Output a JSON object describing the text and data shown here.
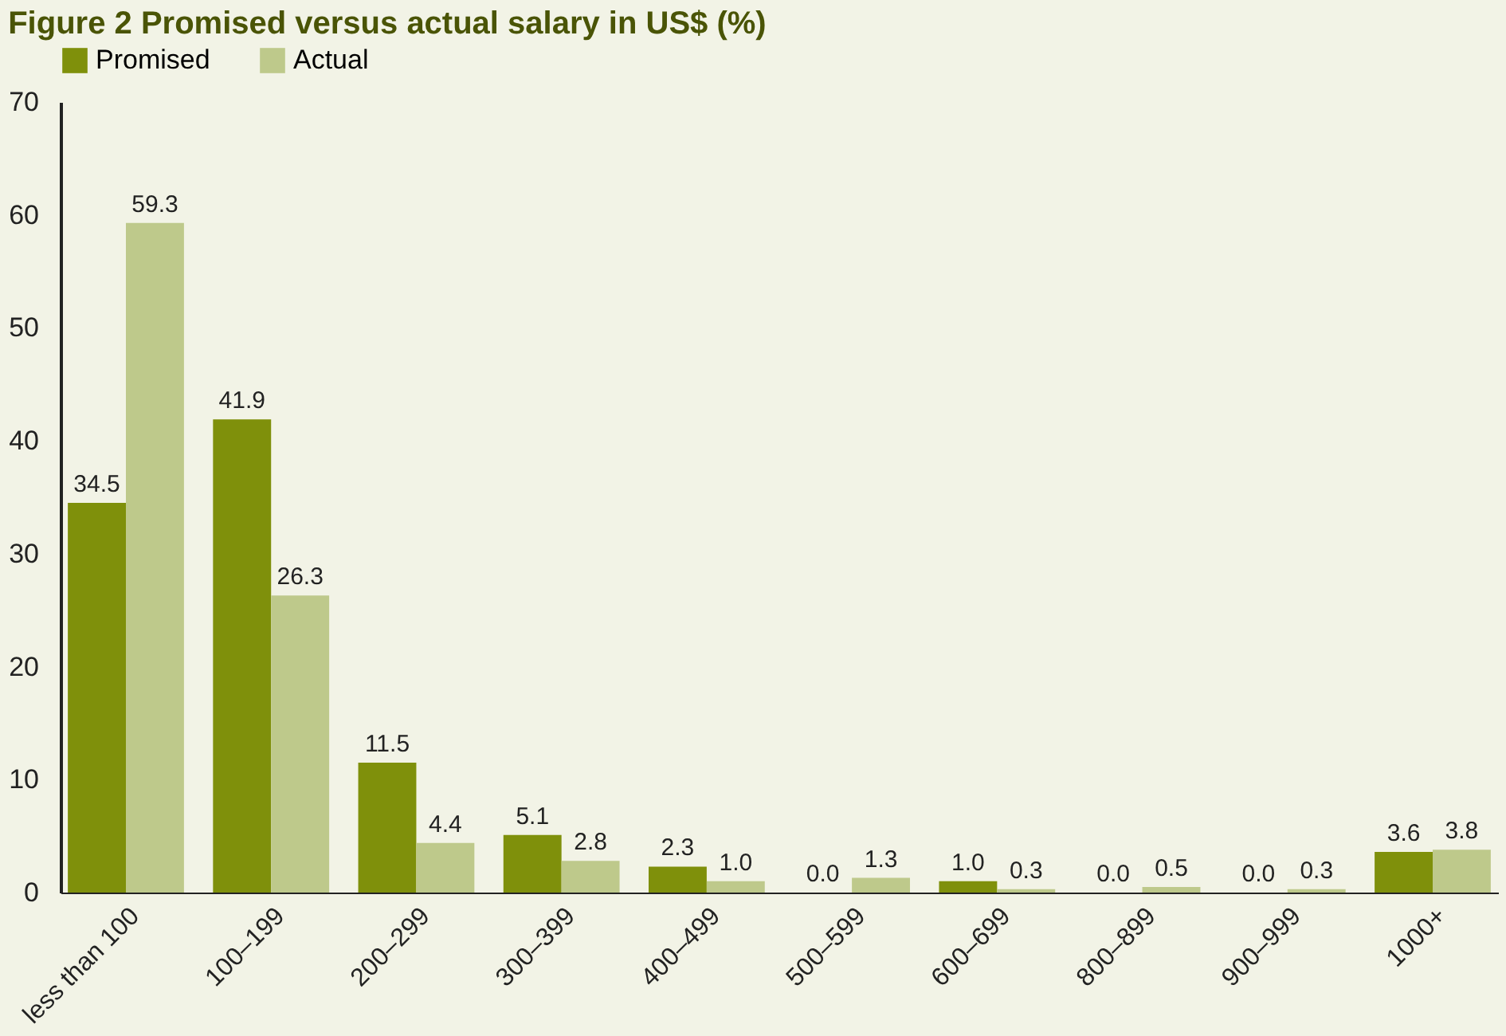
{
  "chart_data": {
    "type": "bar",
    "title": "Figure 2 Promised versus actual salary in US$ (%)",
    "categories": [
      "less than 100",
      "100–199",
      "200–299",
      "300–399",
      "400–499",
      "500–599",
      "600–699",
      "800–899",
      "900–999",
      "1000+"
    ],
    "series": [
      {
        "name": "Promised",
        "color": "#7f900b",
        "values": [
          34.5,
          41.9,
          11.5,
          5.1,
          2.3,
          0.0,
          1.0,
          0.0,
          0.0,
          3.6
        ],
        "value_labels": [
          "34.5",
          "41.9",
          "11.5",
          "5.1",
          "2.3",
          "0.0",
          "1.0",
          "0.0",
          "0.0",
          "3.6"
        ]
      },
      {
        "name": "Actual",
        "color": "#bec98b",
        "values": [
          59.3,
          26.3,
          4.4,
          2.8,
          1.0,
          1.3,
          0.3,
          0.5,
          0.3,
          3.8
        ],
        "value_labels": [
          "59.3",
          "26.3",
          "4.4",
          "2.8",
          "1.0",
          "1.3",
          "0.3",
          "0.5",
          "0.3",
          "3.8"
        ]
      }
    ],
    "ylim": [
      0,
      70
    ],
    "yticks": [
      0,
      10,
      20,
      30,
      40,
      50,
      60,
      70
    ],
    "grid": false,
    "legend": "top"
  }
}
